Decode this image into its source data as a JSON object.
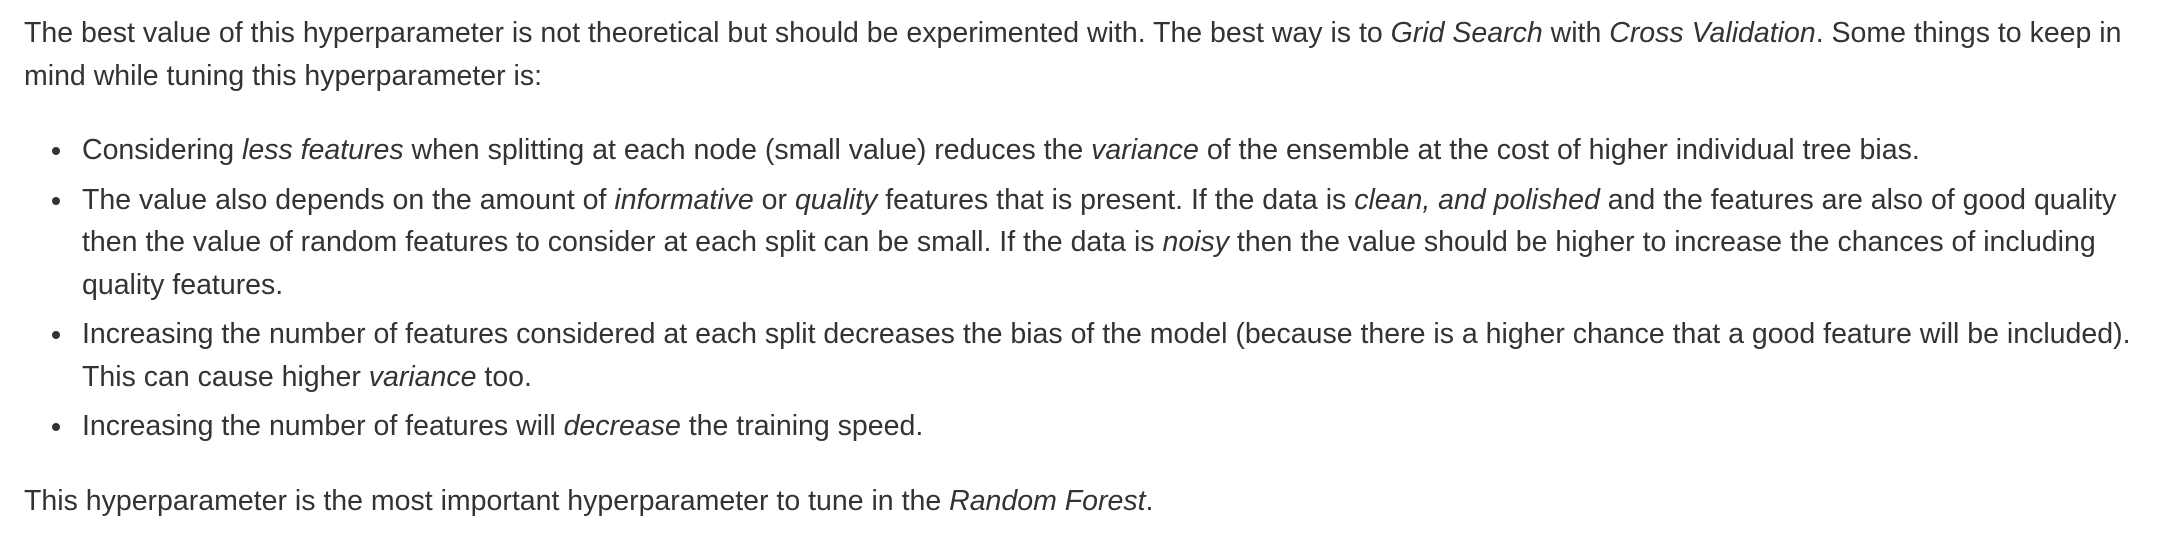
{
  "intro": {
    "t1": "The best value of this hyperparameter is not theoretical but should be experimented with. The best way is to ",
    "e1": "Grid Search",
    "t2": " with ",
    "e2": "Cross Validation",
    "t3": ". Some things to keep in mind while tuning this hyperparameter is:"
  },
  "bullets": [
    {
      "t1": "Considering ",
      "e1": "less features",
      "t2": " when splitting at each node (small value) reduces the ",
      "e2": "variance",
      "t3": " of the ensemble at the cost of higher individual tree bias."
    },
    {
      "t1": "The value also depends on the amount of ",
      "e1": "informative",
      "t2": " or ",
      "e2": "quality",
      "t3": " features that is present. If the data is ",
      "e3": "clean, and polished",
      "t4": " and the features are also of good quality then the value of random features to consider at each split can be small. If the data is ",
      "e4": "noisy",
      "t5": " then the value should be higher to increase the chances of including quality features."
    },
    {
      "t1": "Increasing the number of features considered at each split decreases the bias of the model (because there is a higher chance that a good feature will be included). This can cause higher ",
      "e1": "variance",
      "t2": " too."
    },
    {
      "t1": "Increasing the number of features will ",
      "e1": "decrease",
      "t2": " the training speed."
    }
  ],
  "outro": {
    "t1": "This hyperparameter is the most important hyperparameter to tune in the ",
    "e1": "Random Forest",
    "t2": "."
  }
}
